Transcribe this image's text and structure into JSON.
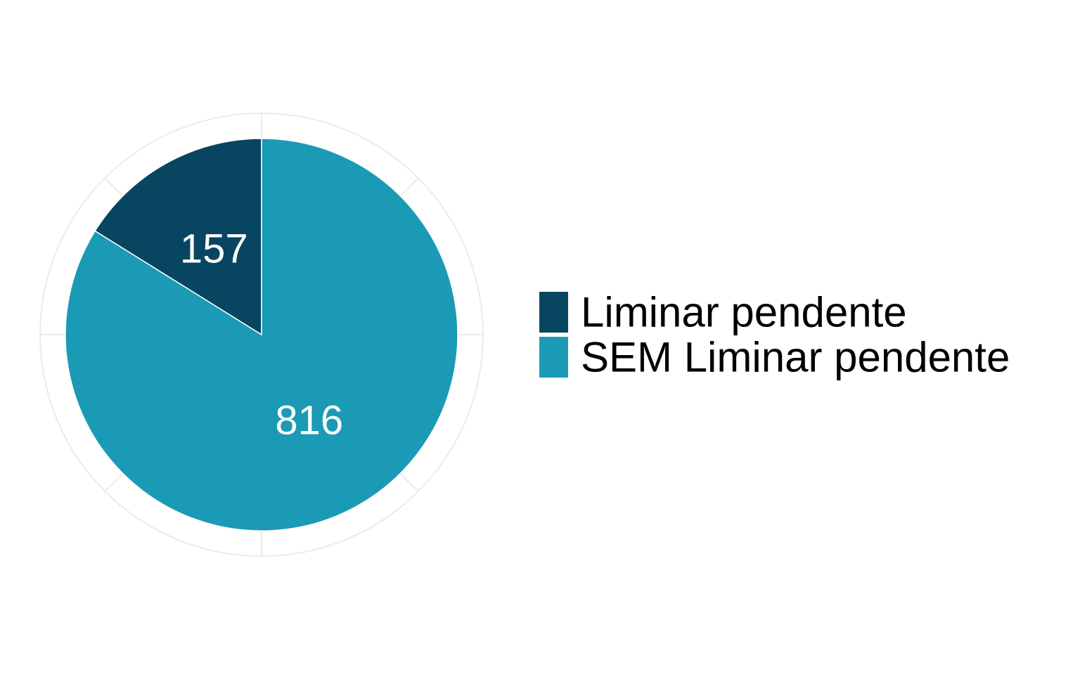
{
  "chart_data": {
    "type": "pie",
    "title": "",
    "categories": [
      "Liminar pendente",
      "SEM Liminar pendente"
    ],
    "values": [
      157,
      816
    ],
    "colors": [
      "#084561",
      "#1b9ab5"
    ],
    "labels": [
      "157",
      "816"
    ],
    "legend_position": "right",
    "grid": true
  }
}
